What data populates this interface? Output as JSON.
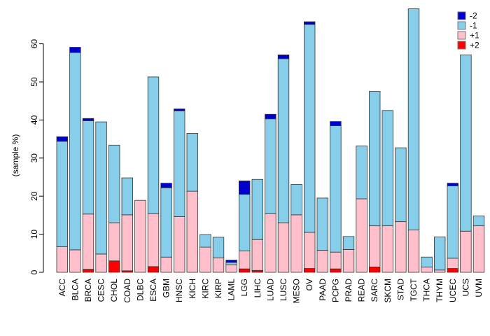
{
  "chart_data": {
    "type": "bar",
    "stacked": true,
    "title": "",
    "xlabel": "",
    "ylabel": "(sample %)",
    "yticks": [
      0,
      10,
      20,
      30,
      40,
      50,
      60
    ],
    "ylim": [
      0,
      70
    ],
    "grid": false,
    "legend_position": "top-right",
    "legend": [
      {
        "label": "-2",
        "color": "#0000CD"
      },
      {
        "label": "-1",
        "color": "#87CEEB"
      },
      {
        "label": "+1",
        "color": "#FFC0CB"
      },
      {
        "label": "+2",
        "color": "#FF0000"
      }
    ],
    "stack_order_bottom_to_top": [
      "+2",
      "+1",
      "-1",
      "-2"
    ],
    "categories": [
      "ACC",
      "BLCA",
      "BRCA",
      "CESC",
      "CHOL",
      "COAD",
      "DLBC",
      "ESCA",
      "GBM",
      "HNSC",
      "KICH",
      "KIRC",
      "KIRP",
      "LAML",
      "LGG",
      "LIHC",
      "LUAD",
      "LUSC",
      "MESO",
      "OV",
      "PAAD",
      "PCPG",
      "PRAD",
      "READ",
      "SARC",
      "SKCM",
      "STAD",
      "TGCT",
      "THCA",
      "THYM",
      "UCEC",
      "UCS",
      "UVM"
    ],
    "series": [
      {
        "name": "+2",
        "color": "#FF0000",
        "values": [
          0,
          0,
          0.8,
          0,
          3.0,
          0.4,
          0,
          1.5,
          0,
          0,
          0,
          0,
          0,
          0,
          0.9,
          0.5,
          0,
          0,
          0,
          1.0,
          0,
          0.9,
          0,
          0,
          1.4,
          0,
          0,
          0,
          0,
          0,
          1.0,
          0,
          0
        ]
      },
      {
        "name": "+1",
        "color": "#FFC0CB",
        "values": [
          6.7,
          5.9,
          14.5,
          4.8,
          10.0,
          14.7,
          18.9,
          13.9,
          4.0,
          14.6,
          21.3,
          6.6,
          3.8,
          2.0,
          4.7,
          8.1,
          15.4,
          13.0,
          15.1,
          9.5,
          5.8,
          4.4,
          6.0,
          19.3,
          10.8,
          12.2,
          13.3,
          11.1,
          1.4,
          0.6,
          2.7,
          10.8,
          12.2
        ]
      },
      {
        "name": "-1",
        "color": "#87CEEB",
        "values": [
          27.7,
          51.8,
          24.5,
          34.7,
          20.4,
          9.7,
          0,
          35.9,
          18.2,
          27.8,
          15.2,
          3.3,
          5.4,
          0.6,
          14.9,
          15.8,
          24.9,
          43.1,
          8.0,
          54.6,
          13.7,
          33.2,
          3.4,
          13.9,
          35.3,
          30.3,
          19.4,
          58.1,
          2.6,
          8.7,
          19.0,
          46.3,
          2.6
        ]
      },
      {
        "name": "-2",
        "color": "#0000CD",
        "values": [
          1.2,
          1.4,
          0.6,
          0,
          0,
          0,
          0,
          0,
          1.2,
          0.5,
          0,
          0,
          0,
          0.6,
          3.5,
          0,
          1.2,
          1.0,
          0,
          0.7,
          0,
          1.1,
          0,
          0,
          0,
          0,
          0,
          0,
          0,
          0,
          0.7,
          0,
          0
        ]
      }
    ]
  },
  "colors": {
    "axis": "#000000",
    "bar_border": "#333333",
    "legend_swatch_border": "#777777"
  }
}
